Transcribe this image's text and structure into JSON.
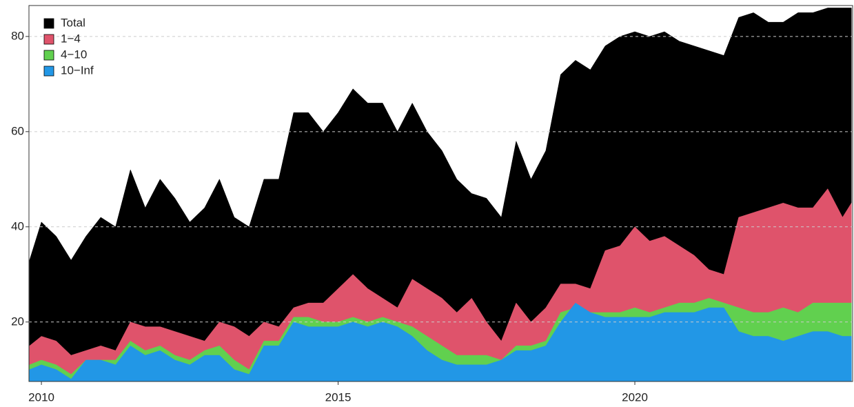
{
  "chart_data": {
    "type": "area",
    "x": [
      2009.8,
      2010,
      2010.25,
      2010.5,
      2010.75,
      2011,
      2011.25,
      2011.5,
      2011.75,
      2012,
      2012.25,
      2012.5,
      2012.75,
      2013,
      2013.25,
      2013.5,
      2013.75,
      2014,
      2014.25,
      2014.5,
      2014.75,
      2015,
      2015.25,
      2015.5,
      2015.75,
      2016,
      2016.25,
      2016.5,
      2016.75,
      2017,
      2017.25,
      2017.5,
      2017.75,
      2018,
      2018.25,
      2018.5,
      2018.75,
      2019,
      2019.25,
      2019.5,
      2019.75,
      2020,
      2020.25,
      2020.5,
      2020.75,
      2021,
      2021.25,
      2021.5,
      2021.75,
      2022,
      2022.25,
      2022.5,
      2022.75,
      2023,
      2023.25,
      2023.5,
      2023.65
    ],
    "series": [
      {
        "name": "Total",
        "color": "#000000",
        "values": [
          33,
          41,
          38,
          33,
          38,
          42,
          40,
          52,
          44,
          50,
          46,
          41,
          44,
          50,
          42,
          40,
          50,
          50,
          64,
          64,
          60,
          64,
          69,
          66,
          66,
          60,
          66,
          60,
          56,
          50,
          47,
          46,
          42,
          58,
          50,
          56,
          72,
          75,
          73,
          78,
          80,
          81,
          80,
          81,
          79,
          78,
          77,
          76,
          84,
          85,
          83,
          83,
          85,
          85,
          86,
          86,
          86
        ]
      },
      {
        "name": "1−4",
        "color": "#DF536B",
        "values": [
          15,
          17,
          16,
          13,
          14,
          15,
          14,
          20,
          19,
          19,
          18,
          17,
          16,
          20,
          19,
          17,
          20,
          19,
          23,
          24,
          24,
          27,
          30,
          27,
          25,
          23,
          29,
          27,
          25,
          22,
          25,
          20,
          16,
          24,
          20,
          23,
          28,
          28,
          27,
          35,
          36,
          40,
          37,
          38,
          36,
          34,
          31,
          30,
          42,
          43,
          44,
          45,
          44,
          44,
          48,
          42,
          45
        ]
      },
      {
        "name": "4−10",
        "color": "#61D04F",
        "values": [
          11,
          12,
          11,
          9,
          12,
          12,
          12,
          16,
          14,
          15,
          13,
          12,
          14,
          15,
          12,
          10,
          16,
          16,
          21,
          21,
          20,
          20,
          21,
          20,
          21,
          20,
          19,
          17,
          15,
          13,
          13,
          13,
          12,
          15,
          15,
          16,
          22,
          23,
          22,
          22,
          22,
          23,
          22,
          23,
          24,
          24,
          25,
          24,
          23,
          22,
          22,
          23,
          22,
          24,
          24,
          24,
          24
        ]
      },
      {
        "name": "10−Inf",
        "color": "#2297E6",
        "values": [
          10,
          11,
          10,
          8,
          12,
          12,
          11,
          15,
          13,
          14,
          12,
          11,
          13,
          13,
          10,
          9,
          15,
          15,
          20,
          19,
          19,
          19,
          20,
          19,
          20,
          19,
          17,
          14,
          12,
          11,
          11,
          11,
          12,
          14,
          14,
          15,
          20,
          24,
          22,
          21,
          21,
          21,
          21,
          22,
          22,
          22,
          23,
          23,
          18,
          17,
          17,
          16,
          17,
          18,
          18,
          17,
          17
        ]
      }
    ],
    "xlim": [
      2009.79,
      2023.67
    ],
    "xticks": [
      2010,
      2015,
      2020
    ],
    "ylim": [
      7.5,
      86.5
    ],
    "yticks": [
      20,
      40,
      60,
      80
    ],
    "grid": true,
    "legend": "top-left"
  }
}
